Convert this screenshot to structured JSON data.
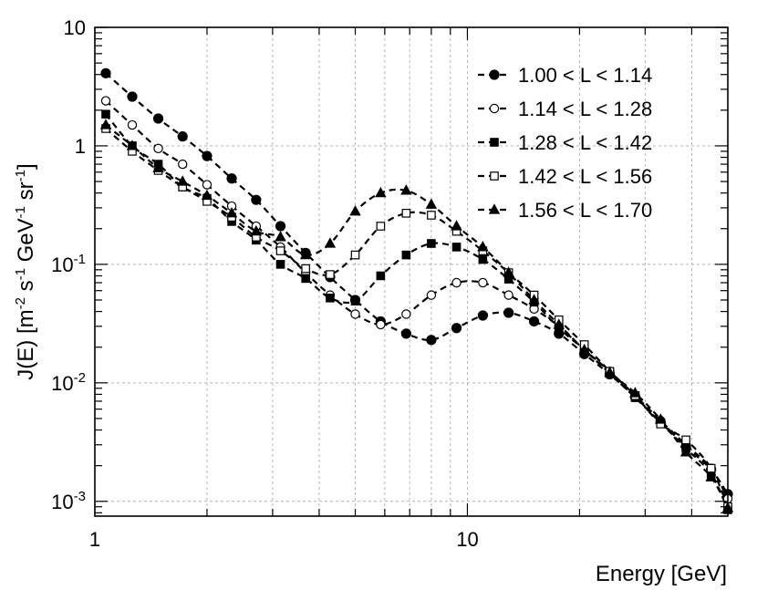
{
  "chart_data": {
    "type": "scatter",
    "title": "",
    "xlabel": "Energy [GeV]",
    "xscale": "log",
    "yscale": "log",
    "xlim": [
      1,
      50
    ],
    "ylim": [
      0.00075,
      10
    ],
    "grid": true,
    "legend_position": "top-right",
    "x_ticks": [
      {
        "value": 1,
        "label": "1"
      },
      {
        "value": 10,
        "label": "10"
      }
    ],
    "y_ticks": [
      {
        "value": 0.001,
        "base": "10",
        "exp": "-3"
      },
      {
        "value": 0.01,
        "base": "10",
        "exp": "-2"
      },
      {
        "value": 0.1,
        "base": "10",
        "exp": "-1"
      },
      {
        "value": 1,
        "base": "1",
        "exp": ""
      },
      {
        "value": 10,
        "base": "10",
        "exp": ""
      }
    ],
    "ylabel_parts": [
      {
        "text": "J(E) [m",
        "sup": false
      },
      {
        "text": "-2",
        "sup": true
      },
      {
        "text": " s",
        "sup": false
      },
      {
        "text": "-1",
        "sup": true
      },
      {
        "text": " GeV",
        "sup": false
      },
      {
        "text": "-1",
        "sup": true
      },
      {
        "text": " sr",
        "sup": false
      },
      {
        "text": "-1",
        "sup": true
      },
      {
        "text": "]",
        "sup": false
      }
    ],
    "series": [
      {
        "name": "1.00 < L < 1.14",
        "marker": "filled-circle",
        "x": [
          1.07,
          1.26,
          1.48,
          1.72,
          2.0,
          2.33,
          2.71,
          3.15,
          3.68,
          4.28,
          5.0,
          5.85,
          6.85,
          8.0,
          9.35,
          11.0,
          12.9,
          15.1,
          17.6,
          20.6,
          24.1,
          28.2,
          33.0,
          38.6,
          45.1,
          50.0
        ],
        "y": [
          4.1,
          2.6,
          1.7,
          1.2,
          0.82,
          0.53,
          0.35,
          0.21,
          0.125,
          0.078,
          0.05,
          0.033,
          0.026,
          0.023,
          0.029,
          0.037,
          0.039,
          0.033,
          0.026,
          0.0175,
          0.0118,
          0.0076,
          0.0047,
          0.0029,
          0.00185,
          0.00115
        ]
      },
      {
        "name": "1.14 < L < 1.28",
        "marker": "open-circle",
        "x": [
          1.07,
          1.26,
          1.48,
          1.72,
          2.0,
          2.33,
          2.71,
          3.15,
          3.68,
          4.28,
          5.0,
          5.85,
          6.85,
          8.0,
          9.35,
          11.0,
          12.9,
          15.1,
          17.6,
          20.6,
          24.1,
          28.2,
          33.0,
          38.6,
          45.1,
          50.0
        ],
        "y": [
          2.4,
          1.5,
          0.95,
          0.7,
          0.47,
          0.31,
          0.21,
          0.14,
          0.085,
          0.055,
          0.038,
          0.031,
          0.038,
          0.055,
          0.07,
          0.07,
          0.055,
          0.042,
          0.03,
          0.019,
          0.0125,
          0.0078,
          0.0048,
          0.003,
          0.0019,
          0.00105
        ]
      },
      {
        "name": "1.28 < L < 1.42",
        "marker": "filled-square",
        "x": [
          1.07,
          1.26,
          1.48,
          1.72,
          2.0,
          2.33,
          2.71,
          3.15,
          3.68,
          4.28,
          5.0,
          5.85,
          6.85,
          8.0,
          9.35,
          11.0,
          12.9,
          15.1,
          17.6,
          20.6,
          24.1,
          28.2,
          33.0,
          38.6,
          45.1,
          50.0
        ],
        "y": [
          1.85,
          1.0,
          0.7,
          0.45,
          0.36,
          0.23,
          0.16,
          0.1,
          0.076,
          0.052,
          0.049,
          0.08,
          0.12,
          0.15,
          0.14,
          0.11,
          0.075,
          0.048,
          0.029,
          0.019,
          0.012,
          0.0075,
          0.0046,
          0.0028,
          0.0017,
          0.00085
        ]
      },
      {
        "name": "1.42 < L < 1.56",
        "marker": "open-square",
        "x": [
          1.07,
          1.26,
          1.48,
          1.72,
          2.0,
          2.33,
          2.71,
          3.15,
          3.68,
          4.28,
          5.0,
          5.85,
          6.85,
          8.0,
          9.35,
          11.0,
          12.9,
          15.1,
          17.6,
          20.6,
          24.1,
          28.2,
          33.0,
          38.6,
          45.1,
          50.0
        ],
        "y": [
          1.4,
          0.9,
          0.62,
          0.45,
          0.34,
          0.25,
          0.17,
          0.13,
          0.092,
          0.082,
          0.12,
          0.21,
          0.27,
          0.26,
          0.19,
          0.13,
          0.085,
          0.055,
          0.034,
          0.021,
          0.0125,
          0.0078,
          0.0045,
          0.0033,
          0.0019,
          0.0009
        ]
      },
      {
        "name": "1.56 < L < 1.70",
        "marker": "filled-triangle",
        "x": [
          1.07,
          1.26,
          1.48,
          1.72,
          2.0,
          2.33,
          2.71,
          3.15,
          3.68,
          4.28,
          5.0,
          5.85,
          6.85,
          8.0,
          9.35,
          11.0,
          12.9,
          15.1,
          17.6,
          20.6,
          24.1,
          28.2,
          33.0,
          38.6,
          45.1,
          50.0
        ],
        "y": [
          1.5,
          1.0,
          0.65,
          0.5,
          0.38,
          0.27,
          0.19,
          0.17,
          0.12,
          0.15,
          0.28,
          0.4,
          0.42,
          0.32,
          0.21,
          0.14,
          0.085,
          0.05,
          0.031,
          0.019,
          0.0122,
          0.0082,
          0.0049,
          0.0026,
          0.0016,
          0.00088
        ]
      }
    ]
  }
}
